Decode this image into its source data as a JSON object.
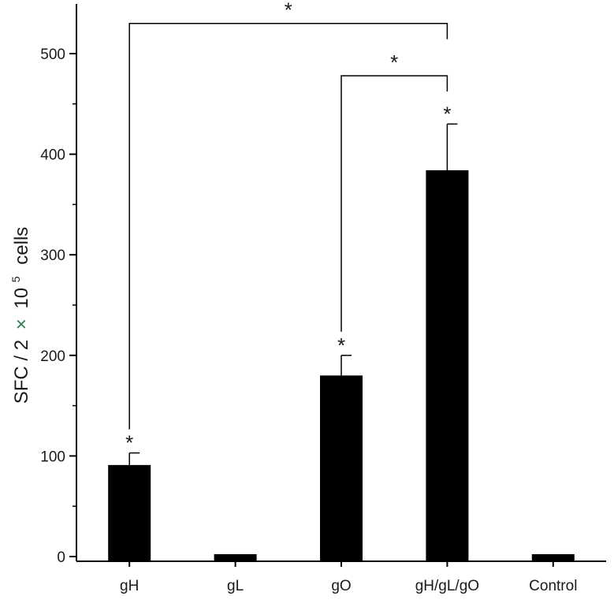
{
  "chart_data": {
    "type": "bar",
    "title": "",
    "xlabel": "",
    "ylabel": {
      "prefix": "SFC / 2",
      "times": "×",
      "base": "10",
      "exponent": "5",
      "suffix": "cells"
    },
    "ylim": [
      -10,
      550
    ],
    "yticks": [
      0,
      100,
      200,
      300,
      400,
      500
    ],
    "categories": [
      "gH",
      "gL",
      "gO",
      "gH/gL/gO",
      "Control"
    ],
    "values": [
      91,
      2,
      180,
      384,
      2
    ],
    "errors": [
      12,
      0,
      20,
      46,
      0
    ],
    "bar_color": "#000000",
    "bar_stars": [
      "*",
      "",
      "*",
      "*",
      ""
    ],
    "brackets": [
      {
        "from": 0,
        "to": 3,
        "top": 530,
        "label": "*"
      },
      {
        "from": 2,
        "to": 3,
        "top": 478,
        "label": "*"
      }
    ],
    "grid": false,
    "legend": "none"
  }
}
